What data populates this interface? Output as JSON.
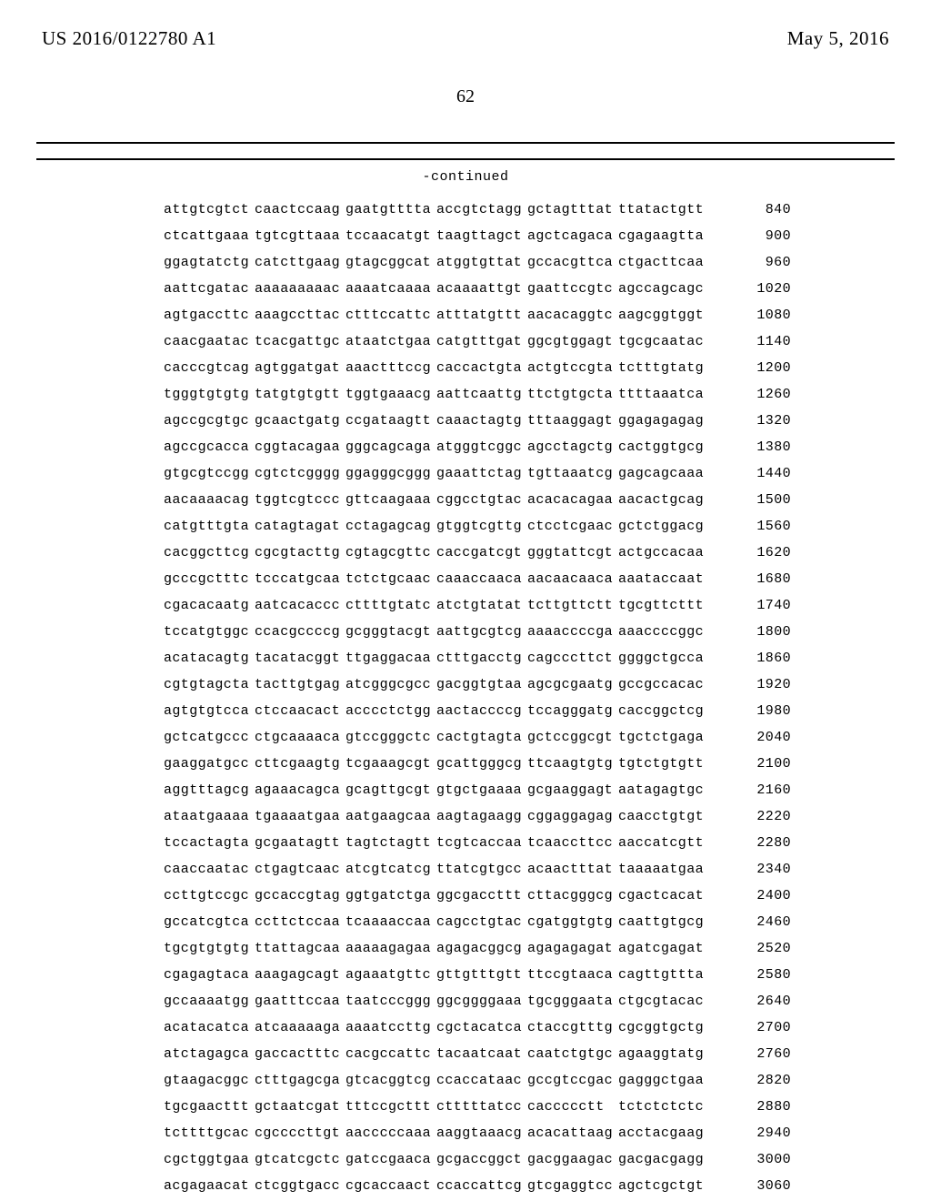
{
  "header": {
    "left": "US 2016/0122780 A1",
    "right": "May 5, 2016"
  },
  "page_number": "62",
  "continued_label": "-continued",
  "sequence": {
    "start": 840,
    "step": 60,
    "rows": [
      [
        "attgtcgtct",
        "caactccaag",
        "gaatgtttta",
        "accgtctagg",
        "gctagtttat",
        "ttatactgtt"
      ],
      [
        "ctcattgaaa",
        "tgtcgttaaa",
        "tccaacatgt",
        "taagttagct",
        "agctcagaca",
        "cgagaagtta"
      ],
      [
        "ggagtatctg",
        "catcttgaag",
        "gtagcggcat",
        "atggtgttat",
        "gccacgttca",
        "ctgacttcaa"
      ],
      [
        "aattcgatac",
        "aaaaaaaaac",
        "aaaatcaaaa",
        "acaaaattgt",
        "gaattccgtc",
        "agccagcagc"
      ],
      [
        "agtgaccttc",
        "aaagccttac",
        "ctttccattc",
        "atttatgttt",
        "aacacaggtc",
        "aagcggtggt"
      ],
      [
        "caacgaatac",
        "tcacgattgc",
        "ataatctgaa",
        "catgtttgat",
        "ggcgtggagt",
        "tgcgcaatac"
      ],
      [
        "cacccgtcag",
        "agtggatgat",
        "aaactttccg",
        "caccactgta",
        "actgtccgta",
        "tctttgtatg"
      ],
      [
        "tgggtgtgtg",
        "tatgtgtgtt",
        "tggtgaaacg",
        "aattcaattg",
        "ttctgtgcta",
        "ttttaaatca"
      ],
      [
        "agccgcgtgc",
        "gcaactgatg",
        "ccgataagtt",
        "caaactagtg",
        "tttaaggagt",
        "ggagagagag"
      ],
      [
        "agccgcacca",
        "cggtacagaa",
        "gggcagcaga",
        "atgggtcggc",
        "agcctagctg",
        "cactggtgcg"
      ],
      [
        "gtgcgtccgg",
        "cgtctcgggg",
        "ggagggcggg",
        "gaaattctag",
        "tgttaaatcg",
        "gagcagcaaa"
      ],
      [
        "aacaaaacag",
        "tggtcgtccc",
        "gttcaagaaa",
        "cggcctgtac",
        "acacacagaa",
        "aacactgcag"
      ],
      [
        "catgtttgta",
        "catagtagat",
        "cctagagcag",
        "gtggtcgttg",
        "ctcctcgaac",
        "gctctggacg"
      ],
      [
        "cacggcttcg",
        "cgcgtacttg",
        "cgtagcgttc",
        "caccgatcgt",
        "gggtattcgt",
        "actgccacaa"
      ],
      [
        "gcccgctttc",
        "tcccatgcaa",
        "tctctgcaac",
        "caaaccaaca",
        "aacaacaaca",
        "aaataccaat"
      ],
      [
        "cgacacaatg",
        "aatcacaccc",
        "cttttgtatc",
        "atctgtatat",
        "tcttgttctt",
        "tgcgttcttt"
      ],
      [
        "tccatgtggc",
        "ccacgccccg",
        "gcgggtacgt",
        "aattgcgtcg",
        "aaaaccccga",
        "aaaccccggc"
      ],
      [
        "acatacagtg",
        "tacatacggt",
        "ttgaggacaa",
        "ctttgacctg",
        "cagcccttct",
        "ggggctgcca"
      ],
      [
        "cgtgtagcta",
        "tacttgtgag",
        "atcgggcgcc",
        "gacggtgtaa",
        "agcgcgaatg",
        "gccgccacac"
      ],
      [
        "agtgtgtcca",
        "ctccaacact",
        "acccctctgg",
        "aactaccccg",
        "tccagggatg",
        "caccggctcg"
      ],
      [
        "gctcatgccc",
        "ctgcaaaaca",
        "gtccgggctc",
        "cactgtagta",
        "gctccggcgt",
        "tgctctgaga"
      ],
      [
        "gaaggatgcc",
        "cttcgaagtg",
        "tcgaaagcgt",
        "gcattgggcg",
        "ttcaagtgtg",
        "tgtctgtgtt"
      ],
      [
        "aggtttagcg",
        "agaaacagca",
        "gcagttgcgt",
        "gtgctgaaaa",
        "gcgaaggagt",
        "aatagagtgc"
      ],
      [
        "ataatgaaaa",
        "tgaaaatgaa",
        "aatgaagcaa",
        "aagtagaagg",
        "cggaggagag",
        "caacctgtgt"
      ],
      [
        "tccactagta",
        "gcgaatagtt",
        "tagtctagtt",
        "tcgtcaccaa",
        "tcaaccttcc",
        "aaccatcgtt"
      ],
      [
        "caaccaatac",
        "ctgagtcaac",
        "atcgtcatcg",
        "ttatcgtgcc",
        "acaactttat",
        "taaaaatgaa"
      ],
      [
        "ccttgtccgc",
        "gccaccgtag",
        "ggtgatctga",
        "ggcgaccttt",
        "cttacgggcg",
        "cgactcacat"
      ],
      [
        "gccatcgtca",
        "ccttctccaa",
        "tcaaaaccaa",
        "cagcctgtac",
        "cgatggtgtg",
        "caattgtgcg"
      ],
      [
        "tgcgtgtgtg",
        "ttattagcaa",
        "aaaaagagaa",
        "agagacggcg",
        "agagagagat",
        "agatcgagat"
      ],
      [
        "cgagagtaca",
        "aaagagcagt",
        "agaaatgttc",
        "gttgtttgtt",
        "ttccgtaaca",
        "cagttgttta"
      ],
      [
        "gccaaaatgg",
        "gaatttccaa",
        "taatcccggg",
        "ggcggggaaa",
        "tgcgggaata",
        "ctgcgtacac"
      ],
      [
        "acatacatca",
        "atcaaaaaga",
        "aaaatccttg",
        "cgctacatca",
        "ctaccgtttg",
        "cgcggtgctg"
      ],
      [
        "atctagagca",
        "gaccactttc",
        "cacgccattc",
        "tacaatcaat",
        "caatctgtgc",
        "agaaggtatg"
      ],
      [
        "gtaagacggc",
        "ctttgagcga",
        "gtcacggtcg",
        "ccaccataac",
        "gccgtccgac",
        "gagggctgaa"
      ],
      [
        "tgcgaacttt",
        "gctaatcgat",
        "tttccgcttt",
        "ctttttatcc",
        "caccccctt",
        "tctctctctc"
      ],
      [
        "tcttttgcac",
        "cgccccttgt",
        "aacccccaaa",
        "aaggtaaacg",
        "acacattaag",
        "acctacgaag"
      ],
      [
        "cgctggtgaa",
        "gtcatcgctc",
        "gatccgaaca",
        "gcgaccggct",
        "gacggaagac",
        "gacgacgagg"
      ],
      [
        "acgagaacat",
        "ctcggtgacc",
        "cgcaccaact",
        "ccaccattcg",
        "gtcgaggtcc",
        "agctcgctgt"
      ]
    ]
  }
}
